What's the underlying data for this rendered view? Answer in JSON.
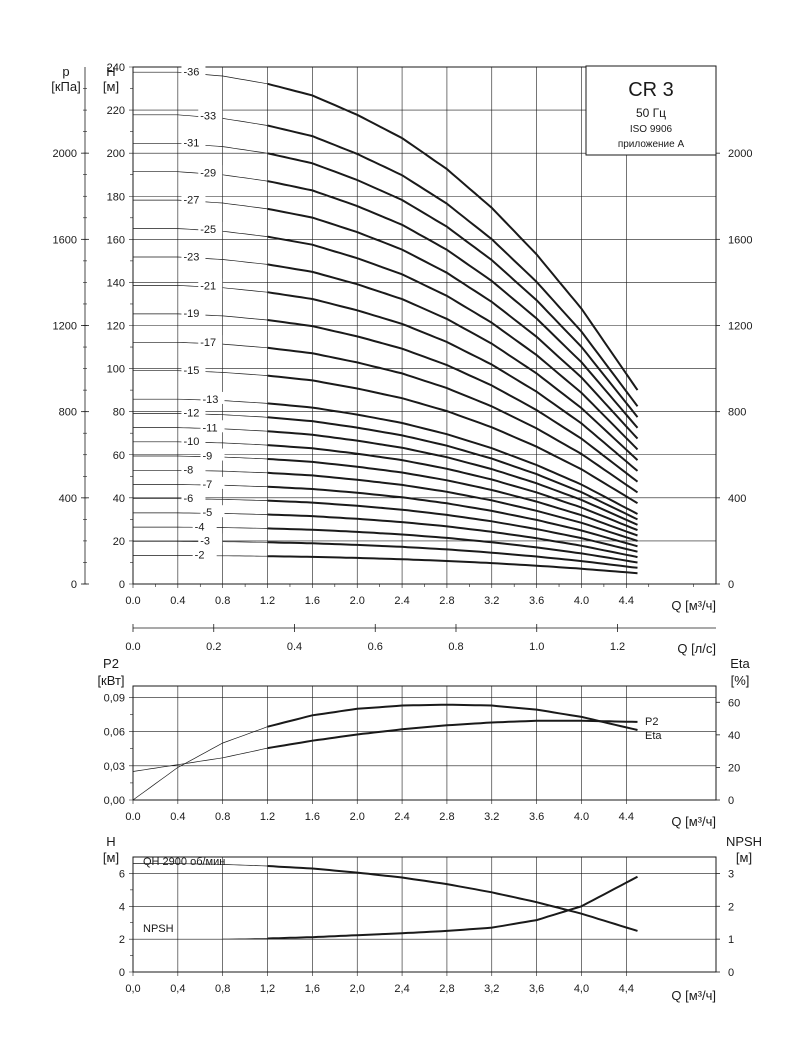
{
  "title_box": {
    "model": "CR 3",
    "frequency": "50 Гц",
    "standard": "ISO 9906",
    "annex": "приложение A"
  },
  "labels": {
    "p_symbol": "p",
    "p_unit": "[кПа]",
    "h_symbol": "H",
    "h_unit": "[м]",
    "q_m3h": "Q [м³/ч]",
    "q_ls": "Q [л/с]",
    "p2_symbol": "P2",
    "p2_unit": "[кВт]",
    "eta_symbol": "Eta",
    "eta_unit": "[%]",
    "h2_symbol": "H",
    "h2_unit": "[м]",
    "npsh_symbol": "NPSH",
    "npsh_unit": "[м]",
    "p2_curve_label": "P2",
    "eta_curve_label": "Eta",
    "qh_curve_label": "QH 2900 об/мин",
    "npsh_curve_label": "NPSH"
  },
  "colors": {
    "curve": "#1a1a1a",
    "grid": "#1a1a1a",
    "background": "#ffffff"
  },
  "chart_data": [
    {
      "type": "line",
      "title": "CR 3",
      "xlabel": "Q [м³/ч]",
      "ylabel": "H [м]",
      "y2label": "p [кПа]",
      "x2label": "Q [л/с]",
      "xlim": [
        0,
        5.2
      ],
      "ylim": [
        0,
        240
      ],
      "y2lim": [
        0,
        2400
      ],
      "x2lim": [
        0,
        1.444
      ],
      "x_ticks": [
        "0.0",
        "0.4",
        "0.8",
        "1.2",
        "1.6",
        "2.0",
        "2.4",
        "2.8",
        "3.2",
        "3.6",
        "4.0",
        "4.4"
      ],
      "y_ticks": [
        "0",
        "20",
        "40",
        "60",
        "80",
        "100",
        "120",
        "140",
        "160",
        "180",
        "200",
        "220",
        "240"
      ],
      "y2_ticks": [
        "0",
        "400",
        "800",
        "1200",
        "1600",
        "2000"
      ],
      "x2_ticks": [
        "0.0",
        "0.2",
        "0.4",
        "0.6",
        "0.8",
        "1.0",
        "1.2"
      ],
      "grid": true,
      "operating_range": [
        1.2,
        4.5
      ],
      "per_stage_curve": {
        "x": [
          0,
          0.4,
          0.8,
          1.2,
          1.6,
          2.0,
          2.4,
          2.8,
          3.2,
          3.6,
          4.0,
          4.5
        ],
        "y": [
          6.6,
          6.6,
          6.55,
          6.45,
          6.3,
          6.05,
          5.75,
          5.35,
          4.85,
          4.25,
          3.55,
          2.5
        ]
      },
      "series": [
        {
          "name": "-2",
          "stages": 2
        },
        {
          "name": "-3",
          "stages": 3
        },
        {
          "name": "-4",
          "stages": 4
        },
        {
          "name": "-5",
          "stages": 5
        },
        {
          "name": "-6",
          "stages": 6
        },
        {
          "name": "-7",
          "stages": 7
        },
        {
          "name": "-8",
          "stages": 8
        },
        {
          "name": "-9",
          "stages": 9
        },
        {
          "name": "-10",
          "stages": 10
        },
        {
          "name": "-11",
          "stages": 11
        },
        {
          "name": "-12",
          "stages": 12
        },
        {
          "name": "-13",
          "stages": 13
        },
        {
          "name": "-15",
          "stages": 15
        },
        {
          "name": "-17",
          "stages": 17
        },
        {
          "name": "-19",
          "stages": 19
        },
        {
          "name": "-21",
          "stages": 21
        },
        {
          "name": "-23",
          "stages": 23
        },
        {
          "name": "-25",
          "stages": 25
        },
        {
          "name": "-27",
          "stages": 27
        },
        {
          "name": "-29",
          "stages": 29
        },
        {
          "name": "-31",
          "stages": 31
        },
        {
          "name": "-33",
          "stages": 33
        },
        {
          "name": "-36",
          "stages": 36
        }
      ]
    },
    {
      "type": "line",
      "xlabel": "Q [м³/ч]",
      "ylabel": "P2 [кВт]",
      "y2label": "Eta [%]",
      "xlim": [
        0,
        5.2
      ],
      "ylim": [
        0,
        0.1
      ],
      "y2lim": [
        0,
        70
      ],
      "x_ticks": [
        "0.0",
        "0.4",
        "0.8",
        "1.2",
        "1.6",
        "2.0",
        "2.4",
        "2.8",
        "3.2",
        "3.6",
        "4.0",
        "4.4"
      ],
      "y_ticks": [
        "0,00",
        "0,03",
        "0,06",
        "0,09"
      ],
      "y2_ticks": [
        "0",
        "20",
        "40",
        "60"
      ],
      "grid": true,
      "operating_range": [
        1.2,
        4.5
      ],
      "series": [
        {
          "name": "P2",
          "axis": "left",
          "x": [
            0,
            0.4,
            0.8,
            1.2,
            1.6,
            2.0,
            2.4,
            2.8,
            3.2,
            3.6,
            4.0,
            4.5
          ],
          "y": [
            0.025,
            0.031,
            0.037,
            0.0455,
            0.052,
            0.0575,
            0.062,
            0.0655,
            0.068,
            0.0695,
            0.0695,
            0.0685
          ]
        },
        {
          "name": "Eta",
          "axis": "right",
          "x": [
            0,
            0.4,
            0.8,
            1.2,
            1.6,
            2.0,
            2.4,
            2.8,
            3.2,
            3.6,
            4.0,
            4.5
          ],
          "y": [
            0,
            20,
            35,
            45,
            52,
            56,
            58,
            58.5,
            58,
            55.5,
            51,
            43
          ]
        }
      ]
    },
    {
      "type": "line",
      "xlabel": "Q [м³/ч]",
      "ylabel": "H [м]",
      "y2label": "NPSH [м]",
      "xlim": [
        0,
        5.2
      ],
      "ylim": [
        0,
        7
      ],
      "y2lim": [
        0,
        3.5
      ],
      "x_ticks": [
        "0,0",
        "0,4",
        "0,8",
        "1,2",
        "1,6",
        "2,0",
        "2,4",
        "2,8",
        "3,2",
        "3,6",
        "4,0",
        "4,4"
      ],
      "y_ticks": [
        "0",
        "2",
        "4",
        "6"
      ],
      "y2_ticks": [
        "0",
        "1",
        "2",
        "3"
      ],
      "grid": true,
      "operating_range": [
        1.2,
        4.5
      ],
      "series": [
        {
          "name": "QH 2900 об/мин",
          "axis": "left",
          "x": [
            0,
            0.4,
            0.8,
            1.2,
            1.6,
            2.0,
            2.4,
            2.8,
            3.2,
            3.6,
            4.0,
            4.5
          ],
          "y": [
            6.6,
            6.6,
            6.55,
            6.45,
            6.3,
            6.05,
            5.75,
            5.35,
            4.85,
            4.25,
            3.55,
            2.5
          ]
        },
        {
          "name": "NPSH",
          "axis": "right",
          "x": [
            0.8,
            1.2,
            1.6,
            2.0,
            2.4,
            2.8,
            3.2,
            3.6,
            4.0,
            4.5
          ],
          "y": [
            1.0,
            1.02,
            1.06,
            1.12,
            1.18,
            1.25,
            1.35,
            1.58,
            2.0,
            2.9
          ]
        }
      ]
    }
  ]
}
